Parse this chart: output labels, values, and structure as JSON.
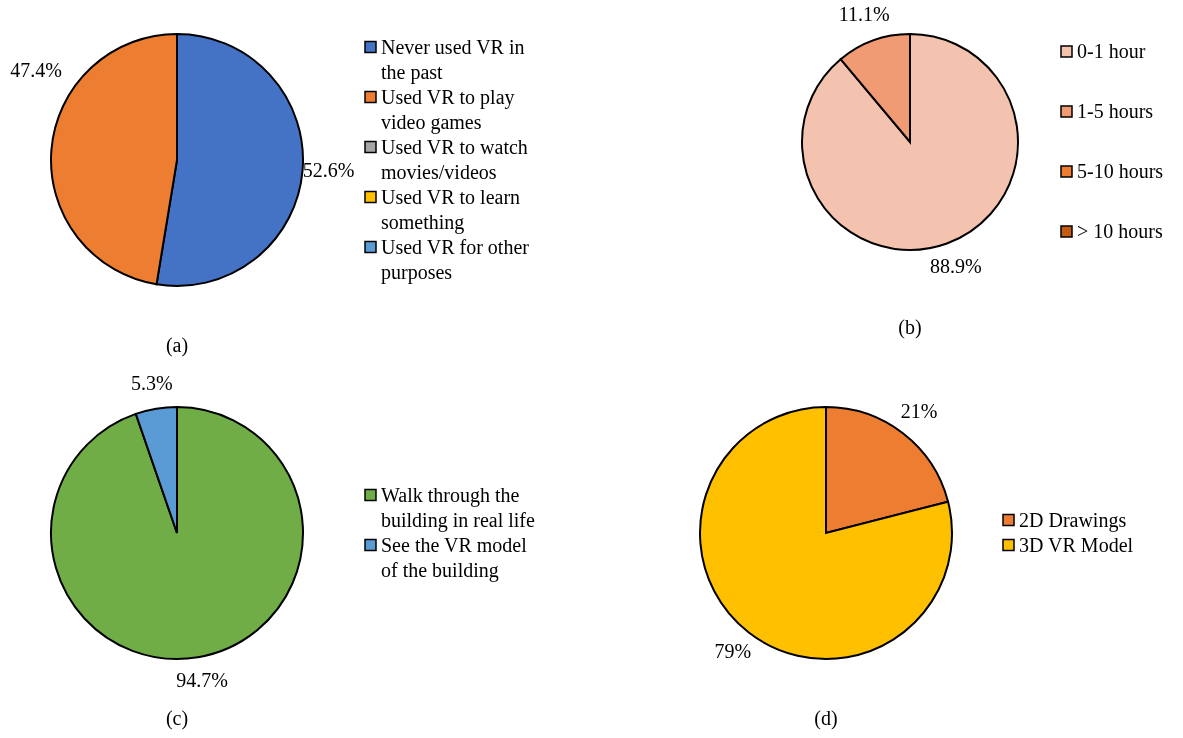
{
  "chart_data": [
    {
      "type": "pie",
      "title": "(a)",
      "categories": [
        "Never used VR in the past",
        "Used VR to play video games",
        "Used VR to watch movies/videos",
        "Used VR to learn something",
        "Used VR for other purposes"
      ],
      "values": [
        52.6,
        47.4,
        0,
        0,
        0
      ],
      "colors": [
        "#4472c4",
        "#ed7d31",
        "#a5a5a5",
        "#ffc000",
        "#5b9bd5"
      ],
      "value_labels": [
        "52.6%",
        "47.4%",
        null,
        null,
        null
      ],
      "legend": "right"
    },
    {
      "type": "pie",
      "title": "(b)",
      "categories": [
        "0-1 hour",
        "1-5 hours",
        "5-10 hours",
        "> 10 hours"
      ],
      "values": [
        88.9,
        11.1,
        0,
        0
      ],
      "colors": [
        "#f4c3b0",
        "#f09b74",
        "#ed7d31",
        "#c55a11"
      ],
      "value_labels": [
        "88.9%",
        "11.1%",
        null,
        null
      ],
      "legend": "right"
    },
    {
      "type": "pie",
      "title": "(c)",
      "categories": [
        "Walk through the building in real life",
        "See the VR model of the building"
      ],
      "values": [
        94.7,
        5.3
      ],
      "colors": [
        "#70ad47",
        "#5b9bd5"
      ],
      "value_labels": [
        "94.7%",
        "5.3%"
      ],
      "legend": "right"
    },
    {
      "type": "pie",
      "title": "(d)",
      "categories": [
        "2D Drawings",
        "3D VR Model"
      ],
      "values": [
        21,
        79
      ],
      "colors": [
        "#ed7d31",
        "#ffc000"
      ],
      "value_labels": [
        "21%",
        "79%"
      ],
      "legend": "right"
    }
  ]
}
